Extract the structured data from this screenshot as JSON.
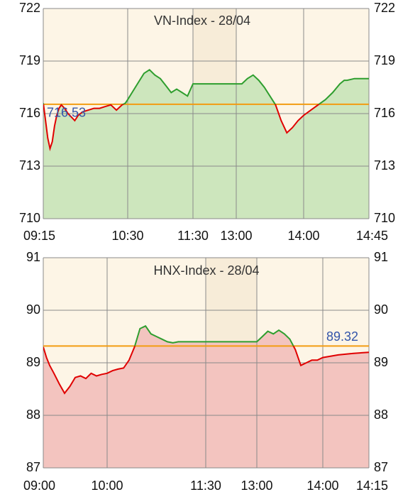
{
  "colors": {
    "page_bg": "#ffffff",
    "plot_bg": "#fdf5e6",
    "break_bg": "#f7ecd8",
    "grid": "#8a8a8a",
    "reference_line": "#f39c12",
    "up_line": "#2e9e2e",
    "up_fill": "#cde6bd",
    "down_line": "#e00000",
    "down_fill": "#f3c4bf",
    "reference_text": "#3355aa"
  },
  "chart_data": [
    {
      "type": "area",
      "title": "VN-Index - 28/04",
      "ylim": [
        710,
        722
      ],
      "y_ticks": [
        710,
        713,
        716,
        719,
        722
      ],
      "y_tick_labels": [
        "710",
        "713",
        "716",
        "719",
        "722"
      ],
      "x_tick_labels": [
        "09:15",
        "10:30",
        "11:30",
        "13:00",
        "14:00",
        "14:45"
      ],
      "lunch_break": [
        "11:30",
        "13:00"
      ],
      "reference": 716.53,
      "reference_label": "716.53",
      "grid": true,
      "series": [
        {
          "x": [
            "09:15",
            "09:17",
            "09:19",
            "09:21",
            "09:23",
            "09:25",
            "09:27",
            "09:29",
            "09:31",
            "09:34",
            "09:37",
            "09:40",
            "09:43",
            "09:46",
            "09:50",
            "09:55",
            "10:00",
            "10:05",
            "10:10",
            "10:15",
            "10:20",
            "10:25",
            "10:28",
            "10:30",
            "10:35",
            "10:40",
            "10:45",
            "10:50",
            "10:55",
            "11:00",
            "11:05",
            "11:10",
            "11:15",
            "11:20",
            "11:25",
            "11:30",
            "13:00",
            "13:05",
            "13:10",
            "13:15",
            "13:20",
            "13:25",
            "13:30",
            "13:35",
            "13:40",
            "13:45",
            "13:50",
            "13:55",
            "14:00",
            "14:05",
            "14:10",
            "14:15",
            "14:20",
            "14:25",
            "14:28",
            "14:30",
            "14:35",
            "14:40",
            "14:45"
          ],
          "values": [
            716.6,
            715.6,
            714.6,
            714.0,
            714.4,
            715.3,
            715.9,
            716.3,
            716.5,
            716.3,
            716.0,
            715.8,
            715.6,
            715.9,
            716.1,
            716.2,
            716.3,
            716.3,
            716.4,
            716.5,
            716.2,
            716.5,
            716.6,
            716.8,
            717.3,
            717.8,
            718.3,
            718.5,
            718.2,
            718.0,
            717.6,
            717.2,
            717.4,
            717.2,
            717.0,
            717.7,
            717.7,
            717.7,
            718.0,
            718.2,
            717.9,
            717.5,
            717.0,
            716.5,
            715.6,
            714.9,
            715.2,
            715.6,
            715.9,
            716.2,
            716.5,
            716.8,
            717.2,
            717.7,
            717.9,
            717.9,
            718.0,
            718.0,
            718.0
          ]
        }
      ]
    },
    {
      "type": "area",
      "title": "HNX-Index - 28/04",
      "ylim": [
        87,
        91
      ],
      "y_ticks": [
        87,
        88,
        89,
        90,
        91
      ],
      "y_tick_labels": [
        "87",
        "88",
        "89",
        "90",
        "91"
      ],
      "x_tick_labels": [
        "09:00",
        "10:00",
        "11:30",
        "13:00",
        "14:00",
        "14:15"
      ],
      "lunch_break": [
        "11:30",
        "13:00"
      ],
      "reference": 89.32,
      "reference_label": "89.32",
      "grid": true,
      "series": [
        {
          "x": [
            "09:00",
            "09:03",
            "09:06",
            "09:10",
            "09:15",
            "09:20",
            "09:25",
            "09:30",
            "09:35",
            "09:40",
            "09:45",
            "09:50",
            "09:55",
            "10:00",
            "10:05",
            "10:10",
            "10:15",
            "10:20",
            "10:25",
            "10:30",
            "10:35",
            "10:40",
            "10:45",
            "10:50",
            "10:55",
            "11:00",
            "11:05",
            "11:10",
            "11:15",
            "11:20",
            "11:25",
            "11:30",
            "13:00",
            "13:05",
            "13:10",
            "13:15",
            "13:20",
            "13:25",
            "13:30",
            "13:35",
            "13:40",
            "13:45",
            "13:50",
            "13:55",
            "14:00",
            "14:05",
            "14:10",
            "14:15"
          ],
          "values": [
            89.3,
            89.1,
            88.95,
            88.8,
            88.6,
            88.42,
            88.55,
            88.72,
            88.75,
            88.7,
            88.8,
            88.75,
            88.78,
            88.8,
            88.85,
            88.88,
            88.9,
            89.05,
            89.3,
            89.65,
            89.7,
            89.55,
            89.5,
            89.45,
            89.4,
            89.38,
            89.4,
            89.4,
            89.4,
            89.4,
            89.4,
            89.4,
            89.4,
            89.5,
            89.6,
            89.55,
            89.62,
            89.55,
            89.45,
            89.25,
            88.95,
            89.0,
            89.05,
            89.05,
            89.1,
            89.15,
            89.18,
            89.2
          ]
        }
      ]
    }
  ]
}
